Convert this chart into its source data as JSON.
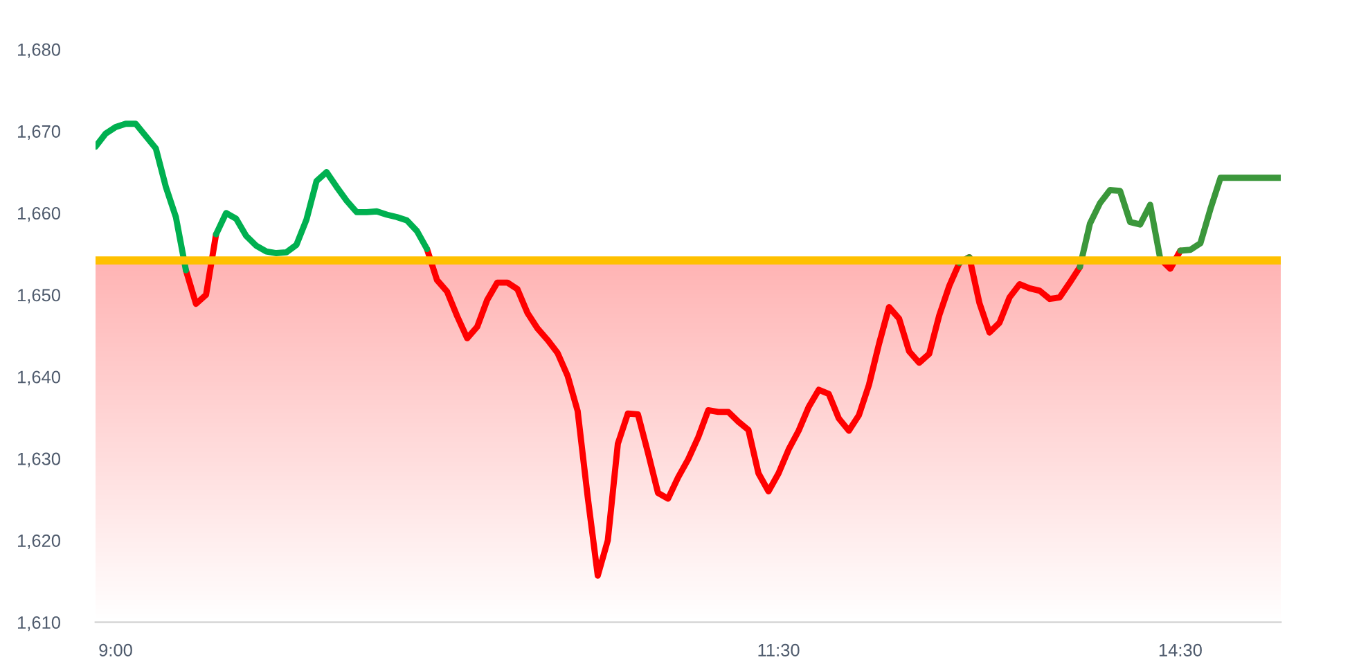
{
  "chart_data": {
    "type": "line",
    "line_style": "solid",
    "categories": [
      null,
      null,
      "9:00",
      null,
      null,
      null,
      null,
      null,
      null,
      null,
      null,
      null,
      null,
      null,
      null,
      null,
      null,
      null,
      null,
      null,
      null,
      null,
      null,
      null,
      null,
      null,
      null,
      null,
      null,
      null,
      null,
      null,
      null,
      null,
      null,
      null,
      null,
      null,
      null,
      null,
      null,
      null,
      null,
      null,
      null,
      null,
      null,
      null,
      null,
      null,
      null,
      null,
      null,
      null,
      null,
      null,
      null,
      null,
      null,
      null,
      null,
      null,
      null,
      null,
      null,
      null,
      null,
      null,
      "11:30",
      null,
      null,
      null,
      null,
      null,
      null,
      null,
      null,
      null,
      null,
      null,
      null,
      null,
      null,
      null,
      null,
      null,
      null,
      null,
      null,
      null,
      null,
      null,
      null,
      null,
      null,
      null,
      null,
      null,
      null,
      null,
      null,
      null,
      null,
      null,
      null,
      null,
      null,
      null,
      "14:30",
      null,
      null,
      null,
      null,
      null,
      null,
      null,
      null,
      null,
      null
    ],
    "ylim": [
      1610,
      1680
    ],
    "yticks": [
      {
        "value": 1610,
        "label": "1,610"
      },
      {
        "value": 1620,
        "label": "1,620"
      },
      {
        "value": 1630,
        "label": "1,630"
      },
      {
        "value": 1640,
        "label": "1,640"
      },
      {
        "value": 1650,
        "label": "1,650"
      },
      {
        "value": 1660,
        "label": "1,660"
      },
      {
        "value": 1670,
        "label": "1,670"
      },
      {
        "value": 1680,
        "label": "1,680"
      }
    ],
    "bands": [
      {
        "axis": "y",
        "from": 1610,
        "to": 1654.2,
        "color": "#ffb4b4"
      }
    ],
    "ref_lines": [
      {
        "axis": "y",
        "value": 1654.2,
        "color": "#ffc000"
      }
    ],
    "series": [
      {
        "color": "#ff0000",
        "values": [
          null,
          null,
          null,
          null,
          null,
          null,
          null,
          null,
          null,
          1653.0,
          1648.9,
          1650.0,
          1657.4,
          null,
          null,
          null,
          null,
          null,
          null,
          null,
          null,
          null,
          null,
          null,
          null,
          null,
          null,
          null,
          null,
          null,
          null,
          null,
          null,
          1655.6,
          1651.8,
          1650.4,
          1647.4,
          1644.7,
          1646.1,
          1649.4,
          1651.5,
          1651.5,
          1650.7,
          1647.8,
          1645.9,
          1644.5,
          1642.9,
          1640.1,
          1635.8,
          1625.3,
          1615.7,
          1620.0,
          1631.8,
          1635.5,
          1635.4,
          1630.7,
          1625.8,
          1625.1,
          1627.7,
          1629.9,
          1632.6,
          1635.9,
          1635.7,
          1635.7,
          1634.5,
          1633.5,
          1628.2,
          1626.0,
          1628.2,
          1631.1,
          1633.4,
          1636.3,
          1638.4,
          1637.9,
          1634.9,
          1633.4,
          1635.3,
          1639.0,
          1644.0,
          1648.5,
          1647.1,
          1643.1,
          1641.7,
          1642.8,
          1647.5,
          1651.1,
          1653.9,
          1654.6,
          1649.0,
          1645.4,
          1646.6,
          1649.7,
          1651.3,
          1650.8,
          1650.5,
          1649.5,
          1649.7,
          1651.5,
          1653.4,
          null,
          null,
          null,
          null,
          null,
          null,
          null,
          1654.4,
          1653.2,
          1655.4,
          null,
          null,
          null,
          null,
          null,
          null,
          null,
          null,
          null,
          null
        ]
      },
      {
        "color": "#00b050",
        "values": [
          1668.1,
          1669.7,
          1670.5,
          1670.9,
          1670.9,
          1669.4,
          1667.9,
          1663.2,
          1659.5,
          1653.0,
          null,
          null,
          1657.4,
          1660.0,
          1659.3,
          1657.2,
          1656.0,
          1655.3,
          1655.1,
          1655.2,
          1656.1,
          1659.2,
          1663.9,
          1665.0,
          1663.2,
          1661.5,
          1660.1,
          1660.1,
          1660.2,
          1659.8,
          1659.5,
          1659.1,
          1657.8,
          1655.6,
          null,
          null,
          null,
          null,
          null,
          null,
          null,
          null,
          null,
          null,
          null,
          null,
          null,
          null,
          null,
          null,
          null,
          null,
          null,
          null,
          null,
          null,
          null,
          null,
          null,
          null,
          null,
          null,
          null,
          null,
          null,
          null,
          null,
          null,
          null,
          null,
          null,
          null,
          null,
          null,
          null,
          null,
          null,
          null,
          null,
          null,
          null,
          null,
          null,
          null,
          null,
          null,
          null,
          null,
          null,
          null,
          null,
          null,
          null,
          null,
          null,
          null,
          null,
          null,
          null,
          null,
          null,
          null,
          null,
          null,
          null,
          null,
          null,
          null,
          null,
          null,
          null,
          null,
          null,
          null,
          null,
          null,
          null,
          null,
          null
        ]
      },
      {
        "color": "#3b973b",
        "values": [
          null,
          null,
          null,
          null,
          null,
          null,
          null,
          null,
          null,
          null,
          null,
          null,
          null,
          null,
          null,
          null,
          null,
          null,
          null,
          null,
          null,
          null,
          null,
          null,
          null,
          null,
          null,
          null,
          null,
          null,
          null,
          null,
          null,
          null,
          null,
          null,
          null,
          null,
          null,
          null,
          null,
          null,
          null,
          null,
          null,
          null,
          null,
          null,
          null,
          null,
          null,
          null,
          null,
          null,
          null,
          null,
          null,
          null,
          null,
          null,
          null,
          null,
          null,
          null,
          null,
          null,
          null,
          null,
          null,
          null,
          null,
          null,
          null,
          null,
          null,
          null,
          null,
          null,
          null,
          null,
          null,
          null,
          null,
          null,
          null,
          null,
          1653.9,
          1654.6,
          null,
          null,
          null,
          null,
          null,
          null,
          null,
          null,
          null,
          null,
          1653.4,
          1658.7,
          1661.2,
          1662.8,
          1662.7,
          1658.9,
          1658.6,
          1661.0,
          1654.4,
          null,
          1655.4,
          1655.5,
          1656.3,
          1660.5,
          1664.3,
          1664.3,
          1664.3,
          1664.3,
          1664.3,
          1664.3,
          1664.3
        ]
      }
    ]
  }
}
